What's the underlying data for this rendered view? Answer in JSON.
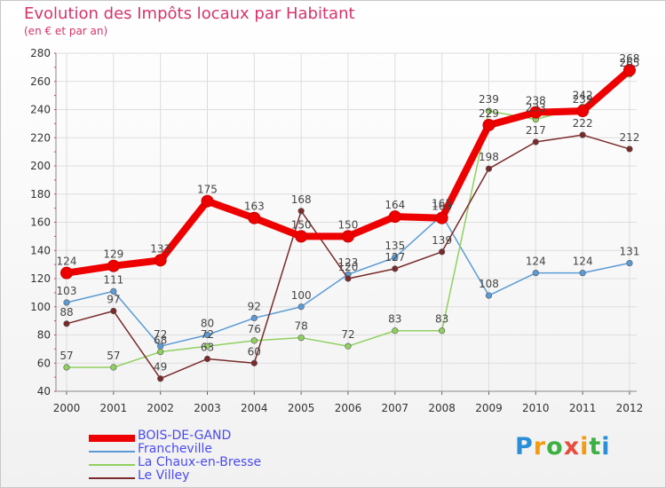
{
  "header": {
    "title": "Evolution des Impôts locaux par Habitant",
    "subtitle": "(en € et par an)"
  },
  "logo": {
    "letters": [
      "P",
      "r",
      "o",
      "x",
      "i",
      "t",
      "i"
    ],
    "colors": [
      "#2a8fd6",
      "#f39c12",
      "#3cb043",
      "#e74c3c",
      "#f39c12",
      "#3cb043",
      "#2a8fd6"
    ]
  },
  "chart_data": {
    "type": "line",
    "title": "Evolution des Impôts locaux par Habitant",
    "subtitle": "(en € et par an)",
    "categories": [
      "2000",
      "2001",
      "2002",
      "2003",
      "2004",
      "2005",
      "2006",
      "2007",
      "2008",
      "2009",
      "2010",
      "2011",
      "2012"
    ],
    "ylim": [
      40,
      280
    ],
    "yticks": [
      "40",
      "60",
      "80",
      "100",
      "120",
      "140",
      "160",
      "180",
      "200",
      "220",
      "240",
      "260",
      "280"
    ],
    "grid": true,
    "legend_position": "bottom-left",
    "series": [
      {
        "name": "BOIS-DE-GAND",
        "color": "#ee0000",
        "values": [
          124,
          129,
          133,
          175,
          163,
          150,
          150,
          164,
          163,
          229,
          238,
          239,
          268
        ],
        "labels": [
          "124",
          "129",
          "133",
          "175",
          "163",
          "150",
          "150",
          "164",
          "163",
          "229",
          "238",
          "239",
          "268"
        ]
      },
      {
        "name": "Francheville",
        "color": "#5b9bd5",
        "values": [
          103,
          111,
          72,
          80,
          92,
          100,
          123,
          135,
          165,
          108,
          124,
          124,
          131
        ],
        "labels": [
          "103",
          "111",
          "72",
          "80",
          "92",
          "100",
          "123",
          "135",
          "165",
          "108",
          "124",
          "124",
          "131"
        ]
      },
      {
        "name": "La Chaux-en-Bresse",
        "color": "#90d060",
        "values": [
          57,
          57,
          68,
          72,
          76,
          78,
          72,
          83,
          83,
          239,
          233,
          242,
          265
        ],
        "labels": [
          "57",
          "57",
          "68",
          "72",
          "76",
          "78",
          "72",
          "83",
          "83",
          "239",
          "233",
          "242",
          "265"
        ]
      },
      {
        "name": "Le Villey",
        "color": "#7a2a2a",
        "values": [
          88,
          97,
          49,
          63,
          60,
          168,
          120,
          127,
          139,
          198,
          217,
          222,
          212
        ],
        "labels": [
          "88",
          "97",
          "49",
          "63",
          "60",
          "168",
          "120",
          "127",
          "139",
          "198",
          "217",
          "222",
          "212"
        ]
      }
    ]
  }
}
